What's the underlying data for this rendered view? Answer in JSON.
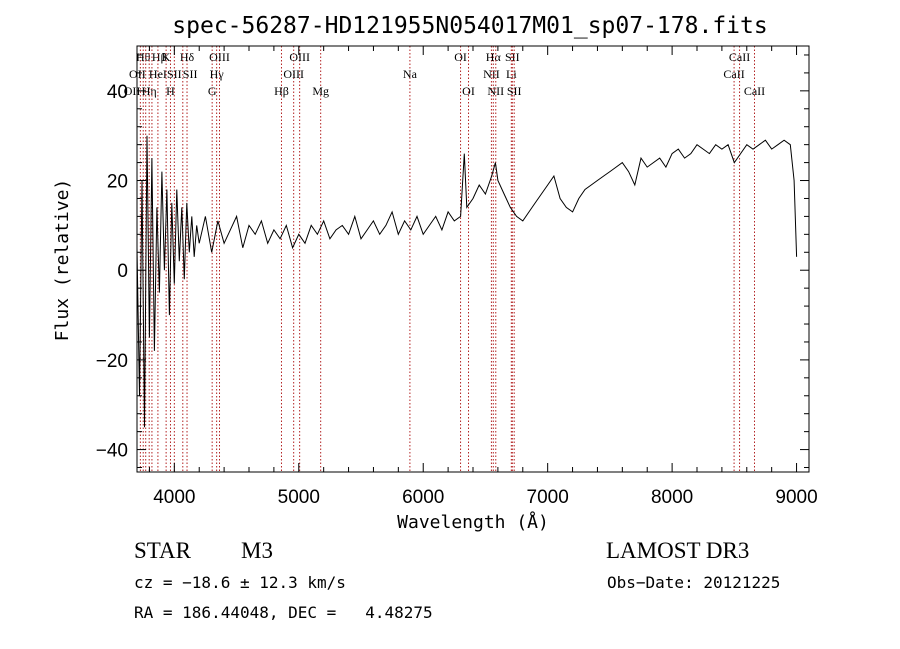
{
  "chart_data": {
    "type": "line",
    "title": "spec-56287-HD121955N054017M01_sp07-178.fits",
    "xlabel": "Wavelength (Å)",
    "ylabel": "Flux (relative)",
    "xlim": [
      3700,
      9100
    ],
    "ylim": [
      -45,
      50
    ],
    "xticks": [
      4000,
      5000,
      6000,
      7000,
      8000,
      9000
    ],
    "yticks": [
      -40,
      -20,
      0,
      20,
      40
    ],
    "series": [
      {
        "x": [
          3700,
          3720,
          3740,
          3760,
          3780,
          3800,
          3820,
          3840,
          3860,
          3880,
          3900,
          3920,
          3940,
          3960,
          3980,
          4000,
          4020,
          4040,
          4060,
          4080,
          4100,
          4120,
          4140,
          4160,
          4180,
          4200,
          4250,
          4300,
          4350,
          4400,
          4450,
          4500,
          4550,
          4600,
          4650,
          4700,
          4750,
          4800,
          4850,
          4900,
          4950,
          5000,
          5050,
          5100,
          5150,
          5200,
          5250,
          5300,
          5350,
          5400,
          5450,
          5500,
          5550,
          5600,
          5650,
          5700,
          5750,
          5800,
          5850,
          5900,
          5950,
          6000,
          6050,
          6100,
          6150,
          6200,
          6250,
          6300,
          6330,
          6350,
          6400,
          6450,
          6500,
          6550,
          6580,
          6600,
          6650,
          6700,
          6750,
          6800,
          6850,
          6900,
          6950,
          7000,
          7050,
          7100,
          7150,
          7200,
          7250,
          7300,
          7350,
          7400,
          7450,
          7500,
          7550,
          7600,
          7650,
          7700,
          7750,
          7800,
          7850,
          7900,
          7950,
          8000,
          8050,
          8100,
          8150,
          8200,
          8250,
          8300,
          8350,
          8400,
          8450,
          8500,
          8550,
          8600,
          8650,
          8700,
          8750,
          8800,
          8850,
          8900,
          8950,
          8980,
          9000
        ],
        "y": [
          5,
          -28,
          20,
          -35,
          30,
          -15,
          25,
          -18,
          14,
          -5,
          22,
          0,
          18,
          -10,
          15,
          -3,
          18,
          2,
          14,
          -2,
          15,
          4,
          12,
          3,
          10,
          6,
          12,
          4,
          11,
          6,
          9,
          12,
          5,
          10,
          8,
          11,
          6,
          9,
          7,
          10,
          5,
          8,
          6,
          10,
          8,
          11,
          7,
          9,
          10,
          8,
          12,
          7,
          9,
          11,
          8,
          10,
          13,
          8,
          11,
          9,
          12,
          8,
          10,
          12,
          9,
          13,
          11,
          12,
          26,
          14,
          16,
          19,
          17,
          21,
          24,
          20,
          17,
          14,
          12,
          11,
          13,
          15,
          17,
          19,
          21,
          16,
          14,
          13,
          16,
          18,
          19,
          20,
          21,
          22,
          23,
          24,
          22,
          19,
          25,
          23,
          24,
          25,
          23,
          26,
          27,
          25,
          26,
          28,
          27,
          26,
          28,
          27,
          28,
          24,
          26,
          28,
          27,
          28,
          29,
          27,
          28,
          29,
          28,
          20,
          3
        ]
      }
    ],
    "lines": [
      {
        "x": 3727,
        "label": "OII",
        "row": 2,
        "anchor": "end"
      },
      {
        "x": 3750,
        "label": "Hθ",
        "row": 0,
        "anchor": "middle"
      },
      {
        "x": 3770,
        "label": "OII",
        "row": 1,
        "anchor": "end"
      },
      {
        "x": 3798,
        "label": "Hη",
        "row": 2,
        "anchor": "middle"
      },
      {
        "x": 3820,
        "label": "Hβ",
        "row": 0,
        "anchor": "start"
      },
      {
        "x": 3868,
        "label": "HeI",
        "row": 1,
        "anchor": "middle"
      },
      {
        "x": 3934,
        "label": "K",
        "row": 0,
        "anchor": "middle"
      },
      {
        "x": 3969,
        "label": "H",
        "row": 2,
        "anchor": "middle"
      },
      {
        "x": 4000,
        "label": "SII",
        "row": 1,
        "anchor": "middle"
      },
      {
        "x": 4102,
        "label": "Hδ",
        "row": 0,
        "anchor": "middle"
      },
      {
        "x": 4068,
        "label": "SII",
        "row": 1,
        "anchor": "start"
      },
      {
        "x": 4304,
        "label": "G",
        "row": 2,
        "anchor": "middle"
      },
      {
        "x": 4340,
        "label": "Hγ",
        "row": 1,
        "anchor": "middle"
      },
      {
        "x": 4363,
        "label": "OIII",
        "row": 0,
        "anchor": "middle"
      },
      {
        "x": 4861,
        "label": "Hβ",
        "row": 2,
        "anchor": "middle"
      },
      {
        "x": 4959,
        "label": "OIII",
        "row": 1,
        "anchor": "middle"
      },
      {
        "x": 5007,
        "label": "OIII",
        "row": 0,
        "anchor": "middle"
      },
      {
        "x": 5176,
        "label": "Mg",
        "row": 2,
        "anchor": "middle"
      },
      {
        "x": 5893,
        "label": "Na",
        "row": 1,
        "anchor": "middle"
      },
      {
        "x": 6300,
        "label": "OI",
        "row": 0,
        "anchor": "middle"
      },
      {
        "x": 6364,
        "label": "OI",
        "row": 2,
        "anchor": "middle"
      },
      {
        "x": 6548,
        "label": "NII",
        "row": 1,
        "anchor": "middle"
      },
      {
        "x": 6563,
        "label": "Hα",
        "row": 0,
        "anchor": "middle"
      },
      {
        "x": 6583,
        "label": "NII",
        "row": 2,
        "anchor": "middle"
      },
      {
        "x": 6708,
        "label": "Li",
        "row": 1,
        "anchor": "middle"
      },
      {
        "x": 6716,
        "label": "SII",
        "row": 0,
        "anchor": "middle"
      },
      {
        "x": 6731,
        "label": "SII",
        "row": 2,
        "anchor": "middle"
      },
      {
        "x": 8498,
        "label": "CaII",
        "row": 1,
        "anchor": "middle"
      },
      {
        "x": 8542,
        "label": "CaII",
        "row": 0,
        "anchor": "middle"
      },
      {
        "x": 8662,
        "label": "CaII",
        "row": 2,
        "anchor": "middle"
      }
    ],
    "line_color": "#b22222",
    "grid": false
  },
  "info": {
    "object_class": "STAR",
    "subclass": "M3",
    "survey": "LAMOST DR3",
    "cz": "cz = −18.6 ± 12.3 km/s",
    "obs_date": "Obs−Date: 20121225",
    "coords": "RA = 186.44048, DEC =   4.48275"
  }
}
